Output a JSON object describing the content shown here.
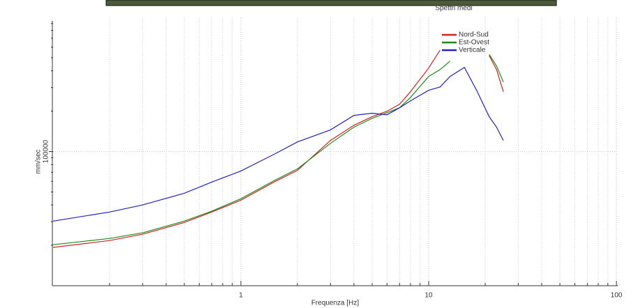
{
  "chart_data": {
    "type": "line",
    "title": "Spettri medi",
    "x_label": "Frequenza [Hz]",
    "y_label": "mm/sec",
    "log_x": true,
    "log_y": true,
    "grid": true,
    "legend_position": "top-right",
    "xlim": [
      0.1,
      100
    ],
    "xticks": [
      1,
      10,
      100
    ],
    "x_minor_ticks": [
      0.2,
      0.3,
      0.4,
      0.5,
      0.6,
      0.7,
      0.8,
      0.9,
      2,
      3,
      4,
      5,
      6,
      7,
      8,
      9,
      20,
      30,
      40,
      50,
      60,
      70,
      80,
      90
    ],
    "ylim": [
      10000,
      1000000
    ],
    "yticks": [
      100000
    ],
    "y_minor_ticks": [
      20000,
      30000,
      40000,
      50000,
      60000,
      70000,
      80000,
      90000,
      200000,
      300000,
      400000,
      500000,
      600000,
      700000,
      800000,
      900000
    ],
    "x": [
      0.1,
      0.2,
      0.3,
      0.5,
      0.7,
      1,
      1.5,
      2,
      3,
      4,
      5,
      6,
      7,
      8,
      10,
      11.5,
      13,
      15.5,
      18,
      21,
      23,
      25
    ],
    "series": [
      {
        "name": "Nord-Sud",
        "color": "#d42020",
        "values": [
          19300,
          21700,
          24200,
          29600,
          35400,
          43400,
          59200,
          72400,
          121000,
          157000,
          182000,
          200000,
          225000,
          279000,
          419000,
          571000,
          null,
          null,
          null,
          519000,
          408000,
          279000
        ]
      },
      {
        "name": "Est-Ovest",
        "color": "#1a8a1a",
        "values": [
          20200,
          22500,
          24800,
          30300,
          35900,
          44500,
          60600,
          74200,
          115000,
          152000,
          177000,
          195000,
          212000,
          253000,
          363000,
          408000,
          472000,
          null,
          null,
          531000,
          434000,
          330000
        ]
      },
      {
        "name": "Verticale",
        "color": "#2020c0",
        "values": [
          30300,
          35400,
          40000,
          48900,
          59200,
          71600,
          95300,
          118000,
          145000,
          186000,
          193000,
          188000,
          212000,
          239000,
          286000,
          303000,
          363000,
          424000,
          286000,
          182000,
          152000,
          121000
        ]
      }
    ]
  }
}
